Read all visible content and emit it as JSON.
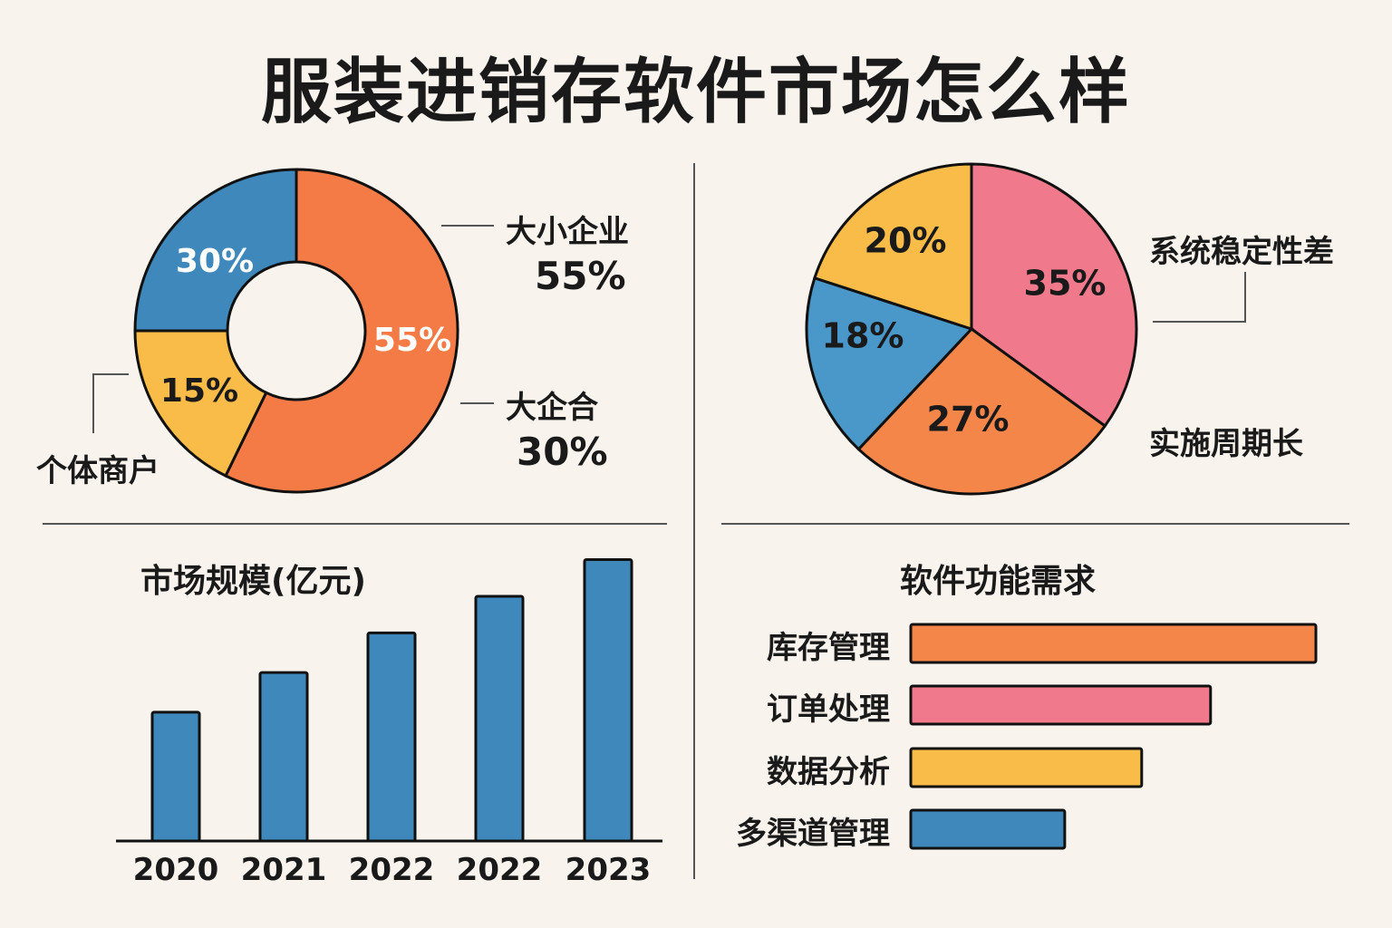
{
  "title": "服装进销存软件市场怎么样",
  "colors": {
    "background": "#f8f3ed",
    "orange": "#f47b45",
    "blue": "#3f88bb",
    "yellow": "#f9bc48",
    "pink": "#f07a8b",
    "pie_orange": "#f5864a",
    "pie_blue": "#4a97c9",
    "outline": "#111111"
  },
  "chart_data": [
    {
      "id": "customer-segments",
      "type": "pie",
      "subtype": "donut",
      "slices": [
        {
          "name": "大小企业",
          "value": 55,
          "label": "55%",
          "color": "#f47b45",
          "label_color": "#ffffff"
        },
        {
          "name": "个体商户",
          "value": 15,
          "label": "15%",
          "color": "#f9bc48",
          "label_color": "#1a1a1a"
        },
        {
          "name": "大企合",
          "value": 30,
          "label": "30%",
          "color": "#3f88bb",
          "label_color": "#ffffff"
        }
      ],
      "callouts": [
        {
          "name": "大小企业",
          "value_text": "55%"
        },
        {
          "name": "大企合",
          "value_text": "30%"
        },
        {
          "name": "个体商户",
          "value_text": ""
        }
      ]
    },
    {
      "id": "pain-points",
      "type": "pie",
      "slices": [
        {
          "name": "系统稳定性差",
          "value": 35,
          "label": "35%",
          "color": "#f07a8b"
        },
        {
          "name": "实施周期长",
          "value": 27,
          "label": "27%",
          "color": "#f5864a"
        },
        {
          "name": "",
          "value": 18,
          "label": "18%",
          "color": "#4a97c9"
        },
        {
          "name": "",
          "value": 20,
          "label": "20%",
          "color": "#f9bc48"
        }
      ],
      "callouts": [
        "系统稳定性差",
        "实施周期长"
      ]
    },
    {
      "id": "market-size",
      "type": "bar",
      "title": "市场规模(亿元)",
      "categories": [
        "2020",
        "2021",
        "2022",
        "2022",
        "2023"
      ],
      "values": [
        130,
        170,
        210,
        247,
        284
      ],
      "ylim": [
        0,
        300
      ],
      "xlabel": "",
      "ylabel": "",
      "grid": false,
      "color": "#3f88bb"
    },
    {
      "id": "feature-demand",
      "type": "bar",
      "orientation": "horizontal",
      "title": "软件功能需求",
      "categories": [
        "库存管理",
        "订单处理",
        "数据分析",
        "多渠道管理"
      ],
      "values": [
        100,
        74,
        57,
        38
      ],
      "xlim": [
        0,
        100
      ],
      "grid": false,
      "colors": [
        "#f5864a",
        "#f07a8b",
        "#f9bc48",
        "#3f88bb"
      ]
    }
  ]
}
